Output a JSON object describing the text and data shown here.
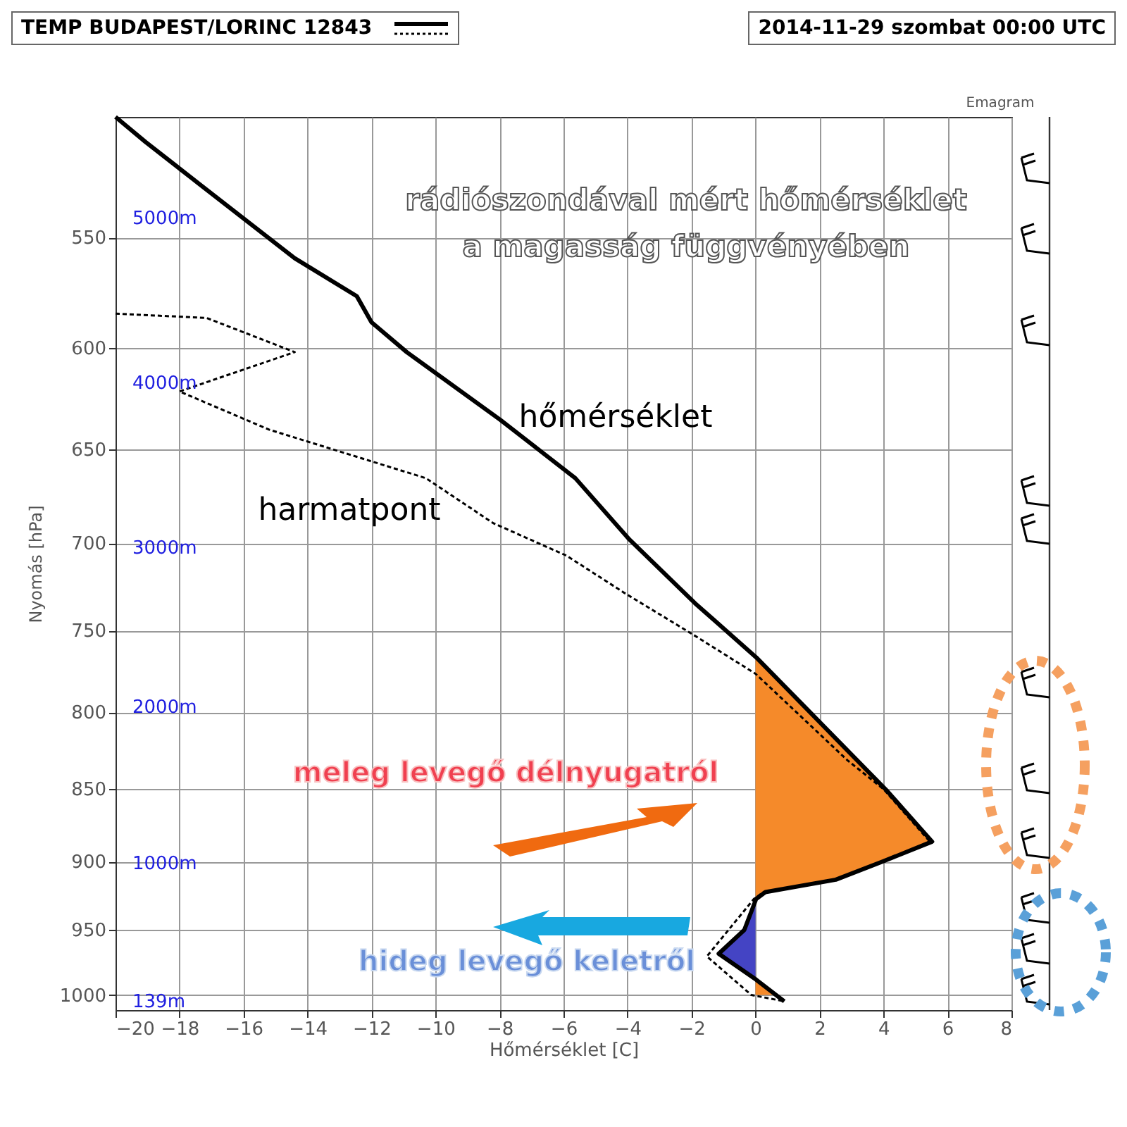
{
  "chart_data": {
    "type": "line",
    "title": "TEMP BUDAPEST/LORINC 12843",
    "subtitle": "2014-11-29 szombat 00:00 UTC",
    "xlabel": "Hőmérséklet [C]",
    "ylabel": "Nyomás [hPa]",
    "xlim": [
      -20,
      8
    ],
    "xticks": [
      -20,
      -18,
      -16,
      -14,
      -12,
      -10,
      -8,
      -6,
      -4,
      -2,
      0,
      2,
      4,
      6,
      8
    ],
    "ylim": [
      1012,
      500
    ],
    "yticks": [
      550,
      600,
      650,
      700,
      750,
      800,
      850,
      900,
      950,
      1000
    ],
    "log": "y",
    "grid": true,
    "marker": "none",
    "series": [
      {
        "type": "area",
        "color": "#f58a2a",
        "x": [
          0.0,
          4.06,
          5.52,
          3.98,
          2.51,
          0.31,
          0.0
        ],
        "values": [
          766,
          850,
          886,
          900,
          913,
          922,
          927
        ]
      },
      {
        "type": "area",
        "color": "#4444c4",
        "x": [
          0.0,
          -0.35,
          -1.15,
          0.0
        ],
        "values": [
          931,
          950,
          968,
          988
        ]
      },
      {
        "type": "area",
        "color": "#f58a2a",
        "x": [
          0.0,
          0.55
        ],
        "values": [
          988,
          1000
        ]
      },
      {
        "name": "hőmérséklet",
        "type": "line",
        "line_style": "solid",
        "color": "#000000",
        "x": [
          -20.0,
          -19.06,
          -17.4,
          -14.4,
          -12.46,
          -12.0,
          -10.9,
          -7.98,
          -5.63,
          -3.94,
          -1.89,
          0.02,
          4.06,
          5.52,
          3.98,
          2.51,
          0.31,
          0.02,
          -0.35,
          -1.15,
          0.02,
          0.9
        ],
        "values": [
          500,
          510,
          527,
          559,
          576,
          588,
          602,
          635,
          665,
          698,
          734,
          766,
          850,
          886,
          900,
          913,
          922,
          927,
          950,
          968,
          988,
          1005
        ]
      },
      {
        "name": "harmatpont",
        "type": "line",
        "line_style": "dashed",
        "color": "#000000",
        "x": [
          -20.0,
          -17.15,
          -14.4,
          -18.0,
          -15.2,
          -10.3,
          -8.2,
          -5.9,
          -4.1,
          -1.9,
          0.0,
          2.88,
          4.0,
          5.45,
          3.95,
          2.5,
          0.25,
          -0.05,
          -1.52,
          -0.13,
          0.9
        ],
        "values": [
          584,
          586,
          602,
          621,
          640,
          665,
          689,
          707,
          728,
          753,
          776,
          831,
          850,
          886,
          900,
          913,
          922,
          927,
          970,
          1000,
          1005
        ]
      }
    ],
    "annotations": [
      "Emagram",
      "rádiószondával mért hőmérséklet",
      "a magasság függvényében",
      "meleg levegő délnyugatról",
      "hideg levegő keletről",
      "5000m",
      "4000m",
      "3000m",
      "2000m",
      "1000m",
      "139m"
    ]
  }
}
